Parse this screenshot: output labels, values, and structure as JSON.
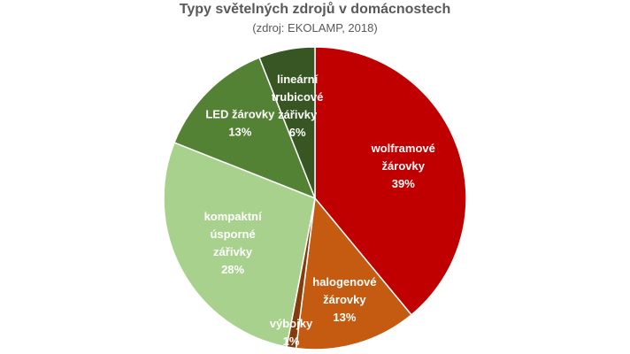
{
  "chart_data": {
    "type": "pie",
    "title": "Typy světelných zdrojů v domácnostech",
    "subtitle": "(zdroj: EKOLAMP, 2018)",
    "slices": [
      {
        "lines": [
          "wolframové",
          "žárovky",
          "39%"
        ],
        "value": 39,
        "color": "#c00000"
      },
      {
        "lines": [
          "halogenové",
          "žárovky",
          "13%"
        ],
        "value": 13,
        "color": "#c55a11"
      },
      {
        "lines": [
          "výbojky",
          "1%"
        ],
        "value": 1,
        "color": "#843c0c"
      },
      {
        "lines": [
          "kompaktní",
          "úsporné",
          "zářivky",
          "28%"
        ],
        "value": 28,
        "color": "#a9d18e"
      },
      {
        "lines": [
          "LED žárovky",
          "13%"
        ],
        "value": 13,
        "color": "#548235"
      },
      {
        "lines": [
          "lineární",
          "trubicové",
          "zářivky",
          "6%"
        ],
        "value": 6,
        "color": "#375623"
      }
    ]
  }
}
